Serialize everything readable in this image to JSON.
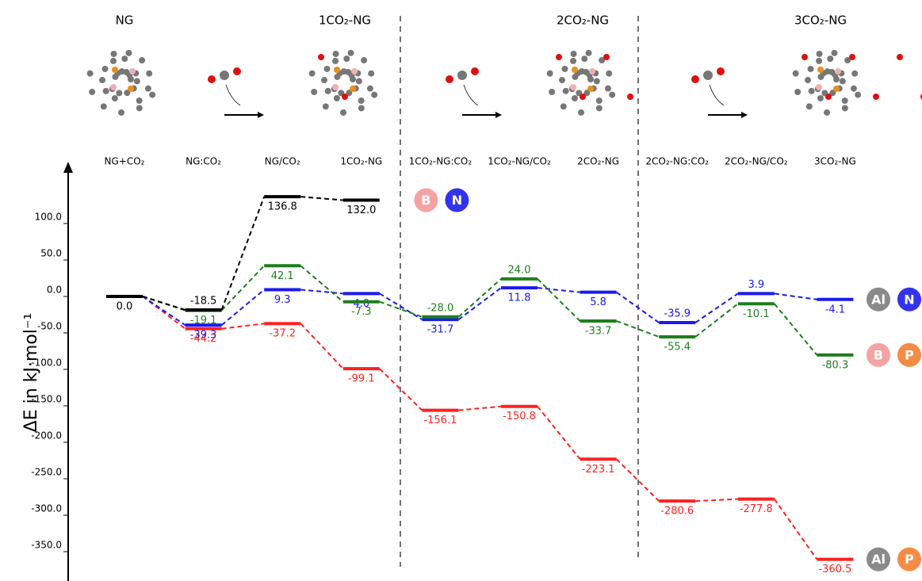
{
  "chart_data": {
    "type": "energy-profile",
    "stage_titles": [
      "NG",
      "1CO₂-NG",
      "2CO₂-NG",
      "3CO₂-NG"
    ],
    "y_label": "ΔE in kJ·mol⁻¹",
    "categories": [
      "NG+CO₂",
      "NG:CO₂",
      "NG/CO₂",
      "1CO₂-NG",
      "1CO₂-NG:CO₂",
      "1CO₂-NG/CO₂",
      "2CO₂-NG",
      "2CO₂-NG:CO₂",
      "2CO₂-NG/CO₂",
      "3CO₂-NG"
    ],
    "ylim": [
      -390,
      180
    ],
    "yticks": [
      {
        "value": 100,
        "label": "100.0"
      },
      {
        "value": 50,
        "label": "50.0"
      },
      {
        "value": 0,
        "label": "0.0"
      },
      {
        "value": -50,
        "label": "-50.0"
      },
      {
        "value": -100,
        "label": "-100.0"
      },
      {
        "value": -150,
        "label": "-150.0"
      },
      {
        "value": -200,
        "label": "-200.0"
      },
      {
        "value": -250,
        "label": "-250.0"
      },
      {
        "value": -300,
        "label": "-300.0"
      },
      {
        "value": -350,
        "label": "-350.0"
      }
    ],
    "series": [
      {
        "color": "#ff2020",
        "badges": [
          {
            "text": "Al",
            "color": "#8a8a8a"
          },
          {
            "text": "P",
            "color": "#f58c45"
          }
        ],
        "values": [
          0,
          -44.2,
          -37.2,
          -99.1,
          -156.1,
          -150.8,
          -223.1,
          -280.6,
          -277.8,
          -360.5
        ],
        "value_labels": [
          null,
          "-44.2",
          "-37.2",
          "-99.1",
          "-156.1",
          "-150.8",
          "-223.1",
          "-280.6",
          "-277.8",
          "-360.5"
        ]
      },
      {
        "color": "#1a1aee",
        "badges": [
          {
            "text": "Al",
            "color": "#8a8a8a"
          },
          {
            "text": "N",
            "color": "#3333ee"
          }
        ],
        "values": [
          0,
          -39.3,
          9.3,
          4.0,
          -31.7,
          11.8,
          5.8,
          -35.9,
          3.9,
          -4.1
        ],
        "value_labels": [
          null,
          "-39.3",
          "9.3",
          "4.0",
          "-31.7",
          "11.8",
          "5.8",
          "-35.9",
          "3.9",
          "-4.1"
        ]
      },
      {
        "color": "#1e7d1e",
        "badges": [
          {
            "text": "B",
            "color": "#f4a3a3"
          },
          {
            "text": "P",
            "color": "#f58c45"
          }
        ],
        "values": [
          0,
          -19.1,
          42.1,
          -7.3,
          -28.0,
          24.0,
          -33.7,
          -55.4,
          -10.1,
          -80.3
        ],
        "value_labels": [
          null,
          "-19.1",
          "42.1",
          "-7.3",
          "-28.0",
          "24.0",
          "-33.7",
          "-55.4",
          "-10.1",
          "-80.3"
        ]
      },
      {
        "color": "#000000",
        "badges": [
          {
            "text": "B",
            "color": "#f4a3a3"
          },
          {
            "text": "N",
            "color": "#3333ee"
          }
        ],
        "values": [
          0,
          -18.5,
          136.8,
          132.0,
          null,
          null,
          null,
          null,
          null,
          null
        ],
        "value_labels": [
          "0.0",
          "-18.5",
          "136.8",
          "132.0",
          null,
          null,
          null,
          null,
          null,
          null
        ]
      }
    ]
  }
}
